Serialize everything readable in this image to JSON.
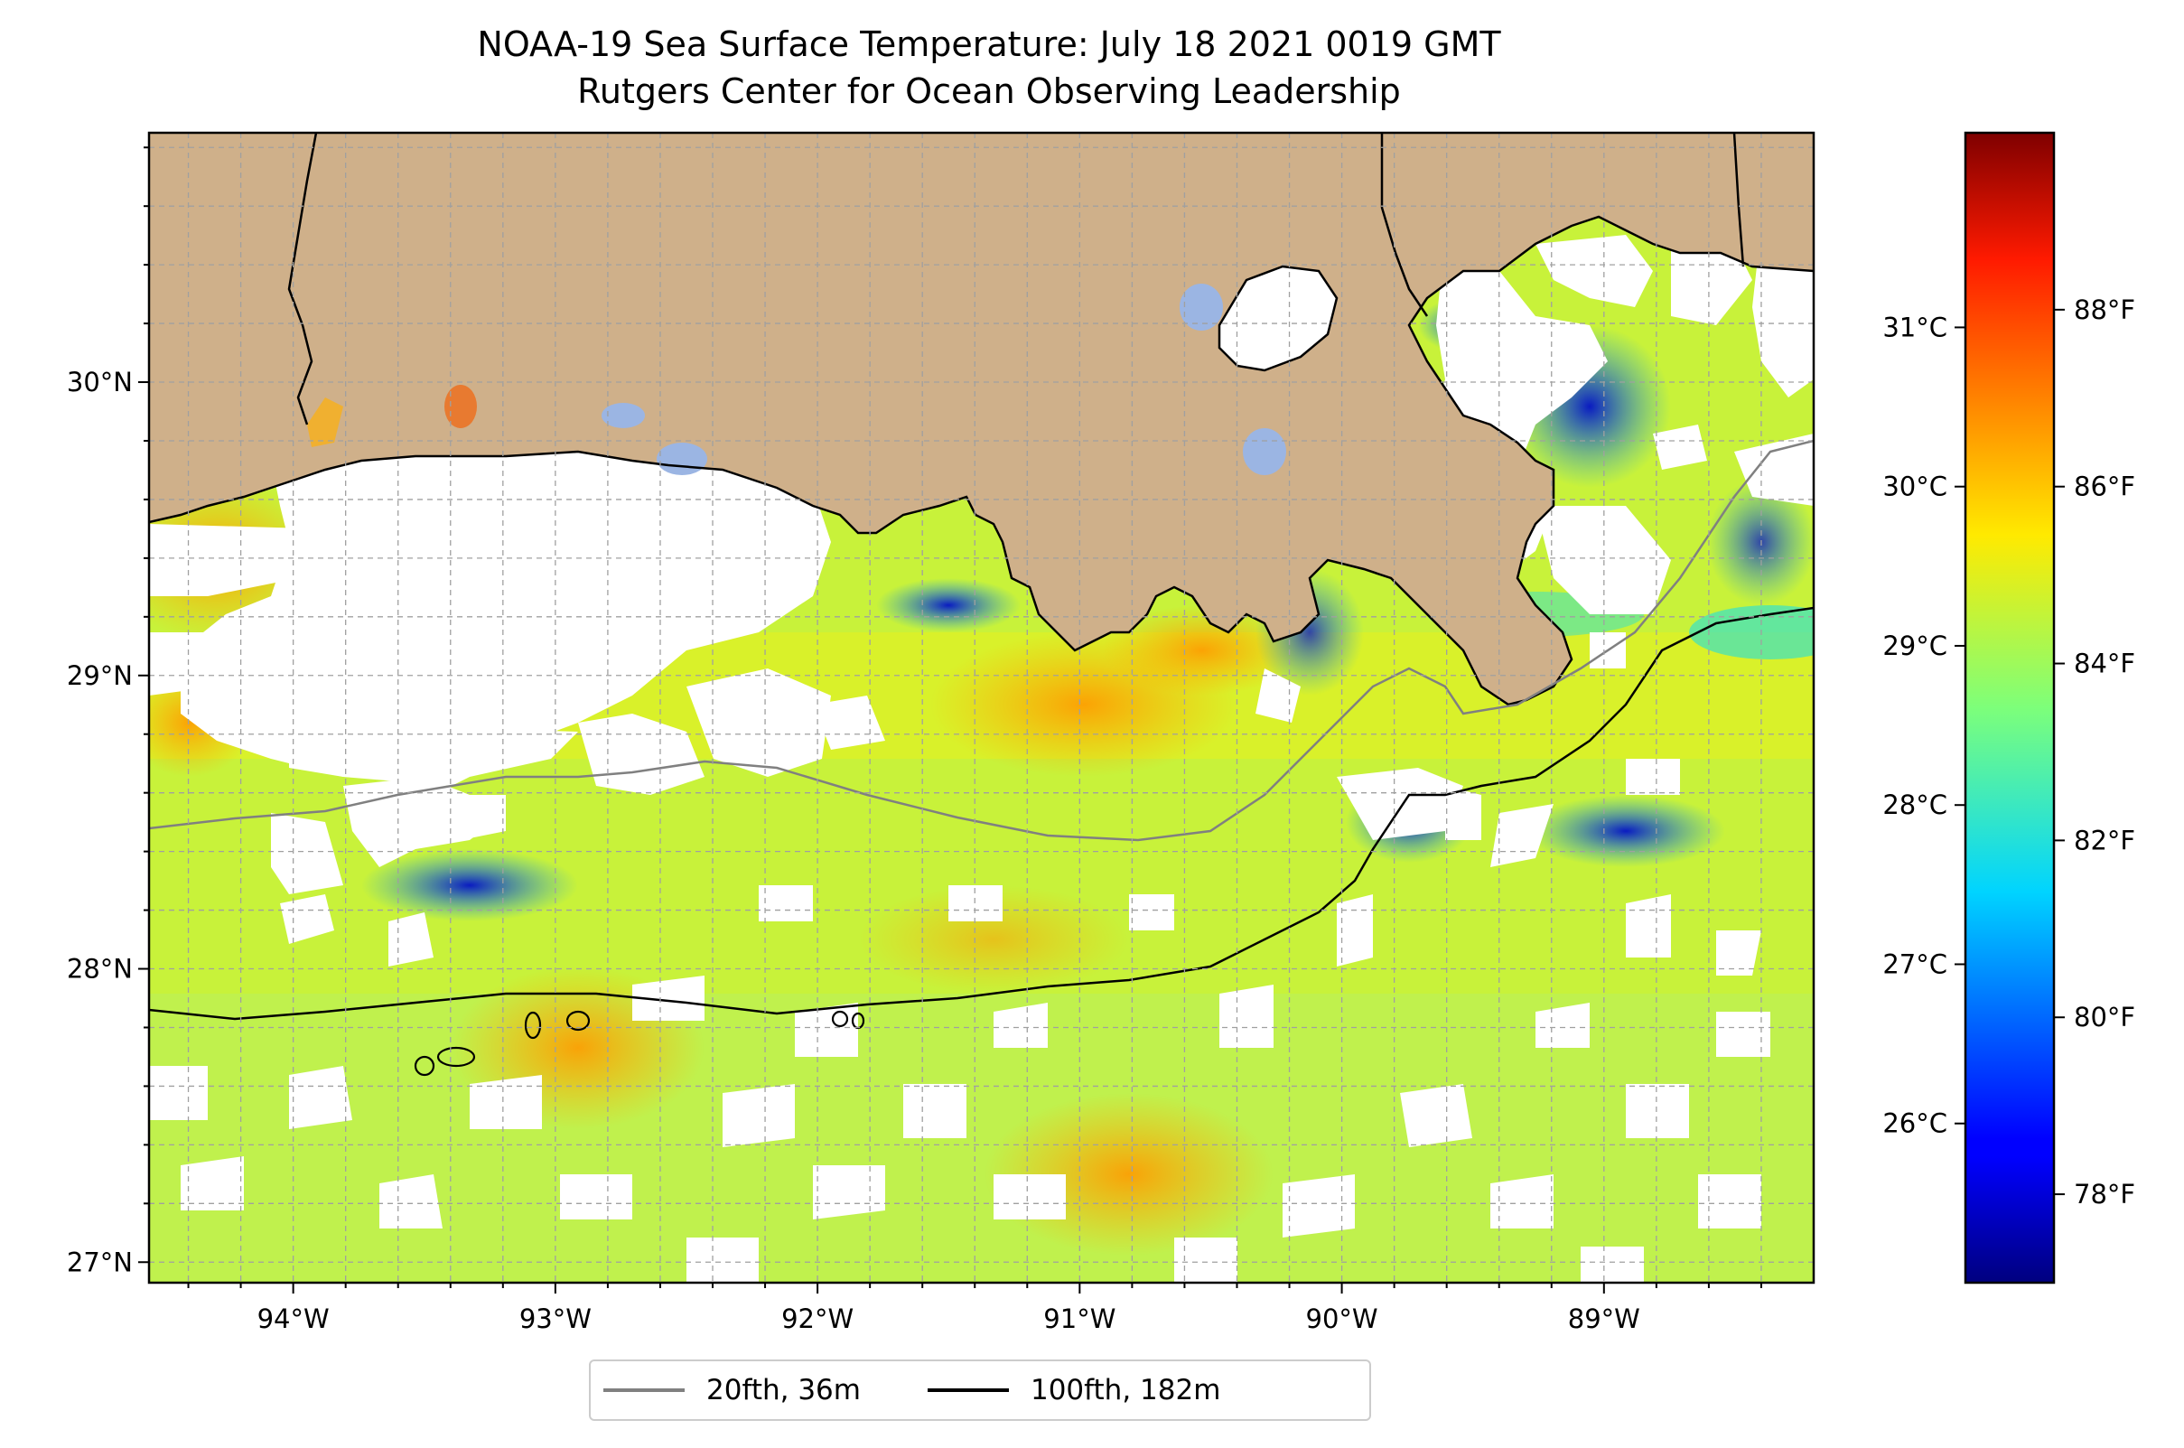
{
  "title": {
    "line1": "NOAA-19 Sea Surface Temperature: July 18 2021 0019 GMT",
    "line2": "Rutgers Center for Ocean Observing Leadership"
  },
  "map": {
    "lon_range": [
      -94.55,
      -88.2
    ],
    "lat_range": [
      26.93,
      30.85
    ],
    "lon_ticks": [
      "94°W",
      "93°W",
      "92°W",
      "91°W",
      "90°W",
      "89°W"
    ],
    "lat_ticks": [
      "30°N",
      "29°N",
      "28°N",
      "27°N"
    ],
    "land_color": "#cfb08a",
    "lake_color": "#9bb5e3",
    "nodata_color": "#ffffff",
    "colormap": "jet"
  },
  "colorbar": {
    "celsius_ticks": [
      "31°C",
      "30°C",
      "29°C",
      "28°C",
      "27°C",
      "26°C"
    ],
    "fahrenheit_ticks": [
      "88°F",
      "86°F",
      "84°F",
      "82°F",
      "80°F",
      "78°F"
    ],
    "range_f": [
      77,
      90
    ]
  },
  "legend": {
    "items": [
      {
        "label": "20fth, 36m",
        "color": "#808080"
      },
      {
        "label": "100fth, 182m",
        "color": "#000000"
      }
    ]
  }
}
